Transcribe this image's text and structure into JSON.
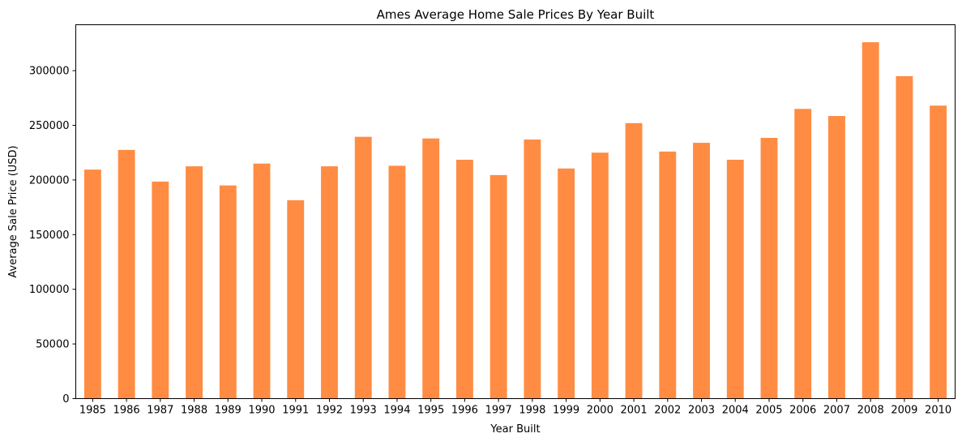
{
  "chart_data": {
    "type": "bar",
    "title": "Ames Average Home Sale Prices By Year Built",
    "xlabel": "Year Built",
    "ylabel": "Average Sale Price (USD)",
    "categories": [
      "1985",
      "1986",
      "1987",
      "1988",
      "1989",
      "1990",
      "1991",
      "1992",
      "1993",
      "1994",
      "1995",
      "1996",
      "1997",
      "1998",
      "1999",
      "2000",
      "2001",
      "2002",
      "2003",
      "2004",
      "2005",
      "2006",
      "2007",
      "2008",
      "2009",
      "2010"
    ],
    "values": [
      209500,
      227500,
      198500,
      212500,
      195000,
      215000,
      181500,
      212500,
      239500,
      213000,
      238000,
      218500,
      204500,
      237000,
      210500,
      225000,
      252000,
      226000,
      234000,
      218500,
      238500,
      265000,
      258500,
      326000,
      295000,
      268000
    ],
    "ylim": [
      0,
      342000
    ],
    "yticks": [
      0,
      50000,
      100000,
      150000,
      200000,
      250000,
      300000
    ],
    "bar_color": "#ff8c42",
    "grid": false,
    "legend": false
  }
}
